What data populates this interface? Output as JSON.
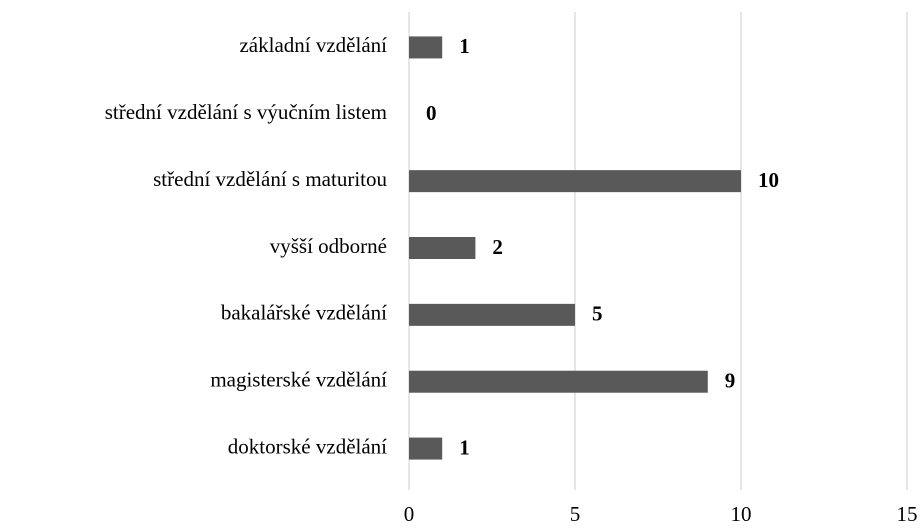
{
  "chart_data": {
    "type": "barh",
    "categories": [
      "základní vzdělání",
      "střední vzdělání s výučním listem",
      "střední vzdělání s maturitou",
      "vyšší odborné",
      "bakalářské vzdělání",
      "magisterské vzdělání",
      "doktorské vzdělání"
    ],
    "values": [
      1,
      0,
      10,
      2,
      5,
      9,
      1
    ],
    "color": "#595959",
    "xlim": [
      0,
      15
    ],
    "xticks": [
      0,
      5,
      10,
      15
    ],
    "grid": true
  }
}
